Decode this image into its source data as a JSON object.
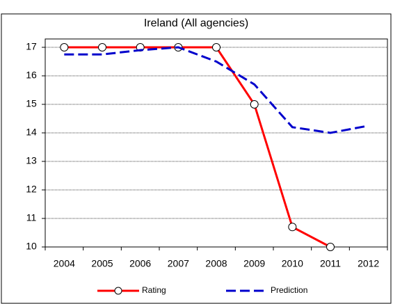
{
  "chart_data": {
    "type": "line",
    "title": "Ireland (All agencies)",
    "categories": [
      "2004",
      "2005",
      "2006",
      "2007",
      "2008",
      "2009",
      "2010",
      "2011",
      "2012"
    ],
    "series": [
      {
        "name": "Rating",
        "color": "#ff0000",
        "values": [
          17,
          17,
          17,
          17,
          17,
          15,
          10.7,
          10,
          null
        ]
      },
      {
        "name": "Prediction",
        "color": "#0000cc",
        "values": [
          16.75,
          16.75,
          16.9,
          17,
          16.5,
          15.7,
          14.2,
          14.0,
          14.25
        ]
      }
    ],
    "ylim": [
      10,
      17
    ],
    "yticks": [
      10,
      11,
      12,
      13,
      14,
      15,
      16,
      17
    ],
    "grid": true,
    "legend": "bottom"
  }
}
